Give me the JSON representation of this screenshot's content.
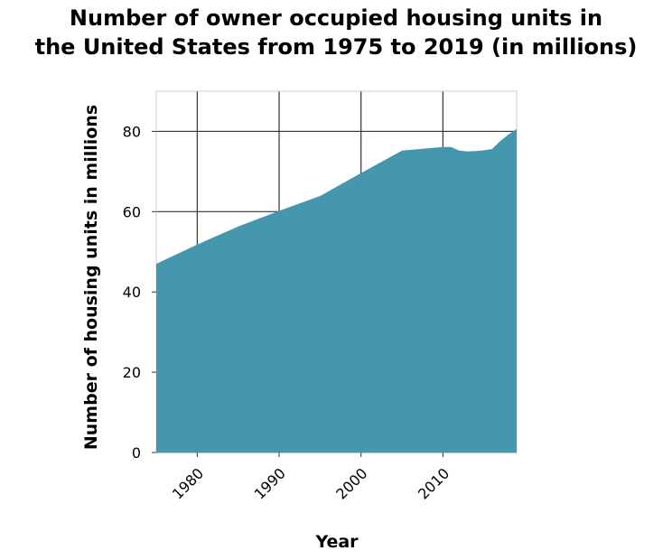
{
  "chart_data": {
    "type": "area",
    "title_lines": [
      "Number of owner occupied housing units in",
      "the United States from 1975 to 2019 (in millions)"
    ],
    "xlabel": "Year",
    "ylabel": "Number of housing units in millions",
    "xlim": [
      1975,
      2019
    ],
    "ylim": [
      0,
      90
    ],
    "xticks": [
      1980,
      1990,
      2000,
      2010
    ],
    "yticks": [
      0,
      20,
      40,
      60,
      80
    ],
    "grid": true,
    "fill_color": "#4597ae",
    "series": [
      {
        "x": [
          1975,
          1980,
          1985,
          1990,
          1995,
          2000,
          2005,
          2010,
          2011,
          2012,
          2013,
          2014,
          2015,
          2016,
          2017,
          2018,
          2019
        ],
        "values": [
          47,
          51.8,
          56.3,
          60.2,
          63.9,
          69.6,
          75.2,
          76.1,
          76.1,
          75.2,
          75.0,
          75.1,
          75.3,
          75.6,
          77.6,
          79.2,
          80.6
        ]
      }
    ]
  }
}
